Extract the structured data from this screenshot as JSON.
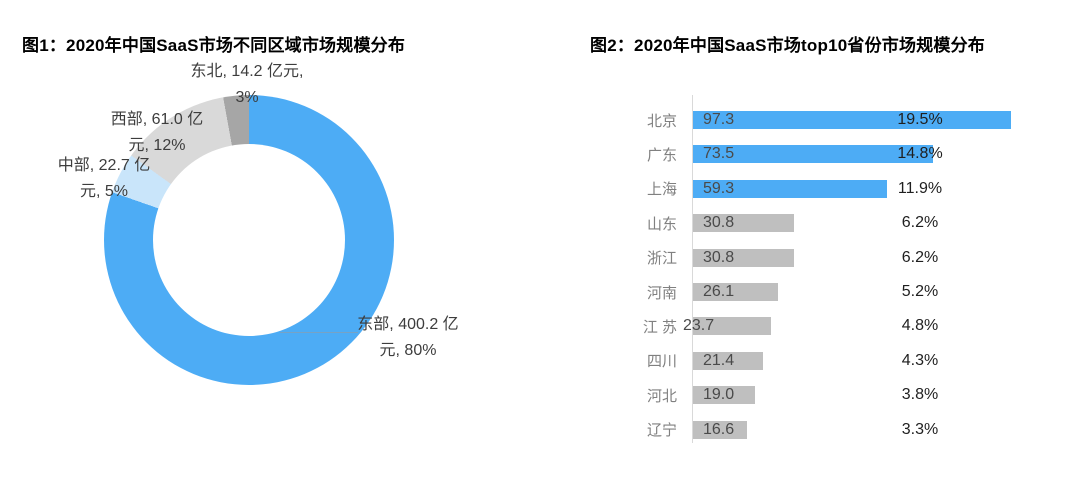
{
  "page": {
    "background": "#ffffff"
  },
  "colors": {
    "primary_blue": "#4dacf5",
    "light_blue": "#c9e5fa",
    "light_gray": "#d9d9d9",
    "dark_gray": "#a6a6a6",
    "bar_gray": "#bfbfbf",
    "axis_gray": "#d9d9d9"
  },
  "chart_data": [
    {
      "type": "pie",
      "subtype": "donut",
      "title": "图1：2020年中国SaaS市场不同区域市场规模分布",
      "unit": "亿元",
      "start_angle_deg": 0,
      "direction": "clockwise",
      "slices": [
        {
          "name": "东部",
          "value": 400.2,
          "pct": "80%",
          "color": "#4dacf5",
          "label_line1": "东部, 400.2 亿",
          "label_line2": "元, 80%"
        },
        {
          "name": "中部",
          "value": 22.7,
          "pct": "5%",
          "color": "#c9e5fa",
          "label_line1": "中部, 22.7 亿",
          "label_line2": "元, 5%"
        },
        {
          "name": "西部",
          "value": 61.0,
          "pct": "12%",
          "color": "#d9d9d9",
          "label_line1": "西部, 61.0 亿",
          "label_line2": "元, 12%"
        },
        {
          "name": "东北",
          "value": 14.2,
          "pct": "3%",
          "color": "#a6a6a6",
          "label_line1": "东北, 14.2 亿元,",
          "label_line2": "3%"
        }
      ]
    },
    {
      "type": "bar",
      "orientation": "horizontal",
      "title": "图2：2020年中国SaaS市场top10省份市场规模分布",
      "xlim": [
        0,
        100
      ],
      "grid": false,
      "categories": [
        "北京",
        "广东",
        "上海",
        "山东",
        "浙江",
        "河南",
        "江 苏",
        "四川",
        "河北",
        "辽宁"
      ],
      "values": [
        97.3,
        73.5,
        59.3,
        30.8,
        30.8,
        26.1,
        23.7,
        21.4,
        19.0,
        16.6
      ],
      "pct_labels": [
        "19.5%",
        "14.8%",
        "11.9%",
        "6.2%",
        "6.2%",
        "5.2%",
        "4.8%",
        "4.3%",
        "3.8%",
        "3.3%"
      ],
      "bar_colors": [
        "#4dacf5",
        "#4dacf5",
        "#4dacf5",
        "#bfbfbf",
        "#bfbfbf",
        "#bfbfbf",
        "#bfbfbf",
        "#bfbfbf",
        "#bfbfbf",
        "#bfbfbf"
      ]
    }
  ]
}
